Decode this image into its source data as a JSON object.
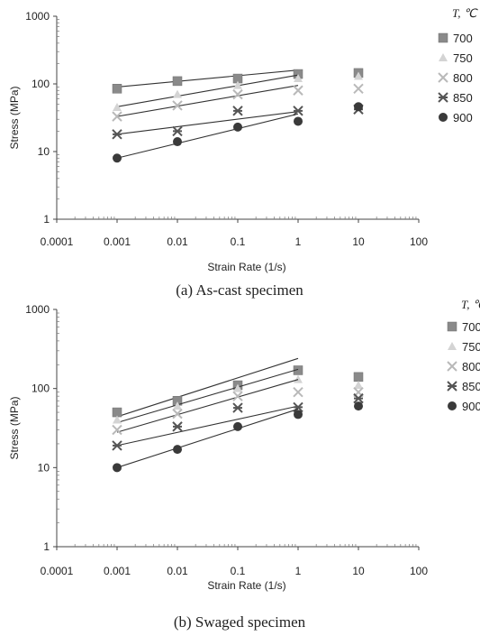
{
  "chart_data": [
    {
      "type": "scatter",
      "caption": "(a)  As-cast specimen",
      "xlabel": "Strain Rate (1/s)",
      "ylabel": "Stress (MPa)",
      "x_scale": "log",
      "y_scale": "log",
      "xlim": [
        0.0001,
        100
      ],
      "ylim": [
        1,
        1000
      ],
      "x_ticks": [
        "0.0001",
        "0.001",
        "0.01",
        "0.1",
        "1",
        "10",
        "100"
      ],
      "y_ticks": [
        "1",
        "10",
        "100",
        "1000"
      ],
      "legend_title": "T, ℃",
      "legend_position": "right",
      "grid": false,
      "series": [
        {
          "name": "700",
          "marker": "square",
          "color": "#8a8a8a",
          "x": [
            0.001,
            0.01,
            0.1,
            1,
            10
          ],
          "y": [
            85,
            110,
            120,
            140,
            145
          ],
          "fit": [
            0.001,
            90,
            1,
            160
          ]
        },
        {
          "name": "750",
          "marker": "triangle",
          "color": "#d4d4d4",
          "x": [
            0.001,
            0.01,
            0.1,
            1,
            10
          ],
          "y": [
            45,
            70,
            95,
            120,
            130
          ],
          "fit": [
            0.001,
            46,
            1,
            135
          ]
        },
        {
          "name": "800",
          "marker": "x",
          "color": "#b9b9b9",
          "x": [
            0.001,
            0.01,
            0.1,
            1,
            10
          ],
          "y": [
            33,
            48,
            70,
            80,
            85
          ],
          "fit": [
            0.001,
            33,
            1,
            95
          ]
        },
        {
          "name": "850",
          "marker": "star",
          "color": "#555555",
          "x": [
            0.001,
            0.01,
            0.1,
            1,
            10
          ],
          "y": [
            18,
            20,
            40,
            40,
            42
          ],
          "fit": [
            0.001,
            18,
            1,
            39
          ]
        },
        {
          "name": "900",
          "marker": "circle",
          "color": "#3a3a3a",
          "x": [
            0.001,
            0.01,
            0.1,
            1,
            10
          ],
          "y": [
            8,
            14,
            23,
            28,
            46
          ],
          "fit": [
            0.001,
            8,
            1,
            36
          ]
        }
      ]
    },
    {
      "type": "scatter",
      "caption": "(b)  Swaged specimen",
      "xlabel": "Strain Rate (1/s)",
      "ylabel": "Stress (MPa)",
      "x_scale": "log",
      "y_scale": "log",
      "xlim": [
        0.0001,
        100
      ],
      "ylim": [
        1,
        1000
      ],
      "x_ticks": [
        "0.0001",
        "0.001",
        "0.01",
        "0.1",
        "1",
        "10",
        "100"
      ],
      "y_ticks": [
        "1",
        "10",
        "100",
        "1000"
      ],
      "legend_title": "T, ℃",
      "legend_position": "right",
      "grid": false,
      "series": [
        {
          "name": "700",
          "marker": "square",
          "color": "#8a8a8a",
          "x": [
            0.001,
            0.01,
            0.1,
            1,
            10
          ],
          "y": [
            50,
            70,
            110,
            170,
            140
          ],
          "fit": [
            0.001,
            44,
            1,
            240
          ]
        },
        {
          "name": "750",
          "marker": "triangle",
          "color": "#d4d4d4",
          "x": [
            0.001,
            0.01,
            0.1,
            1,
            10
          ],
          "y": [
            40,
            60,
            100,
            130,
            110
          ],
          "fit": [
            0.001,
            37,
            1,
            175
          ]
        },
        {
          "name": "800",
          "marker": "x",
          "color": "#b9b9b9",
          "x": [
            0.001,
            0.01,
            0.1,
            1,
            10
          ],
          "y": [
            30,
            48,
            80,
            90,
            90
          ],
          "fit": [
            0.001,
            28,
            1,
            130
          ]
        },
        {
          "name": "850",
          "marker": "star",
          "color": "#555555",
          "x": [
            0.001,
            0.01,
            0.1,
            1,
            10
          ],
          "y": [
            19,
            33,
            57,
            58,
            75
          ],
          "fit": [
            0.001,
            19,
            1,
            60
          ]
        },
        {
          "name": "900",
          "marker": "circle",
          "color": "#3a3a3a",
          "x": [
            0.001,
            0.01,
            0.1,
            1,
            10
          ],
          "y": [
            10,
            17,
            33,
            47,
            60
          ],
          "fit": [
            0.001,
            10,
            1,
            55
          ]
        }
      ]
    }
  ]
}
